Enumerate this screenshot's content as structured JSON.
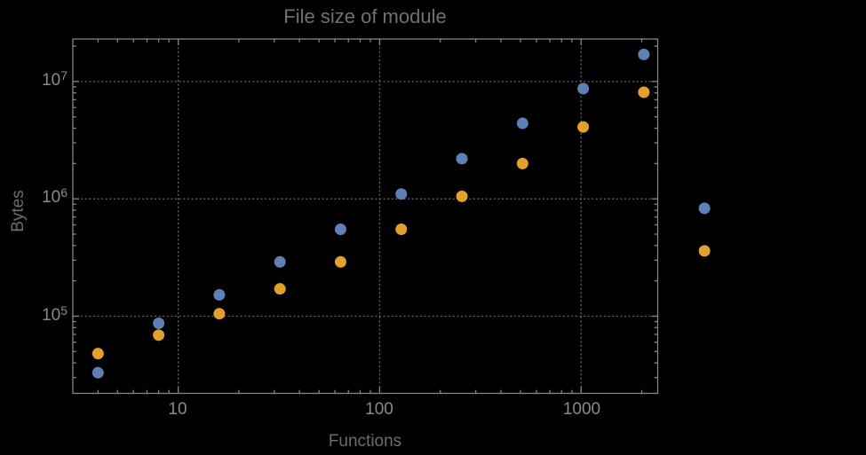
{
  "colors": {
    "background": "#000000",
    "frame": "#848484",
    "grid": "#666666",
    "title_text": "#707070",
    "axis_label_text": "#6d6d6d",
    "tick_label_text": "#8a8a8a",
    "series_blue": "#5E81B5",
    "series_orange": "#E2A02C"
  },
  "chart_data": {
    "type": "scatter",
    "title": "File size of module",
    "xlabel": "Functions",
    "ylabel": "Bytes",
    "xscale": "log",
    "yscale": "log",
    "xlim": [
      3,
      2400
    ],
    "ylim": [
      22000,
      23000000
    ],
    "grid": true,
    "grid_style": "dotted",
    "grid_at": "decades",
    "legend": "none",
    "x_ticks": [
      {
        "value": 10,
        "label": "10"
      },
      {
        "value": 100,
        "label": "100"
      },
      {
        "value": 1000,
        "label": "1000"
      }
    ],
    "y_ticks": [
      {
        "value": 10000000,
        "base": "10",
        "exp": "7"
      },
      {
        "value": 1000000,
        "base": "10",
        "exp": "6"
      },
      {
        "value": 100000,
        "base": "10",
        "exp": "5"
      }
    ],
    "x": [
      4,
      8,
      16,
      32,
      64,
      128,
      256,
      512,
      1024,
      2048,
      4096
    ],
    "series": [
      {
        "name": "blue-series",
        "color": "#5E81B5",
        "values": [
          33000,
          87000,
          152000,
          290000,
          550000,
          1100000,
          2200000,
          4400000,
          8700000,
          17000000,
          830000
        ]
      },
      {
        "name": "orange-series",
        "color": "#E2A02C",
        "values": [
          48000,
          69000,
          105000,
          171000,
          290000,
          550000,
          1050000,
          2000000,
          4100000,
          8100000,
          360000
        ]
      }
    ]
  }
}
